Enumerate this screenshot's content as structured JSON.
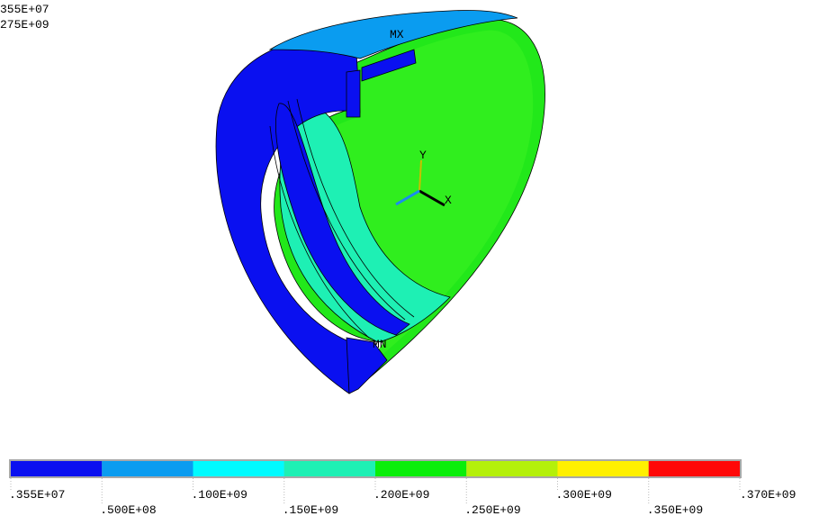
{
  "header": {
    "lines": [
      "355E+07",
      "275E+09"
    ]
  },
  "model": {
    "max_label": "MX",
    "min_label": "MN"
  },
  "triad": {
    "y_label": "Y",
    "x_label": "X"
  },
  "legend": {
    "colors": [
      "#0a10f0",
      "#0a9cf0",
      "#00fbff",
      "#1ef0b4",
      "#0aee0a",
      "#b4f00a",
      "#fff000",
      "#ff0808"
    ],
    "labels": [
      ".355E+07",
      ".500E+08",
      ".100E+09",
      ".150E+09",
      ".200E+09",
      ".250E+09",
      ".300E+09",
      ".350E+09",
      ".370E+09"
    ]
  }
}
